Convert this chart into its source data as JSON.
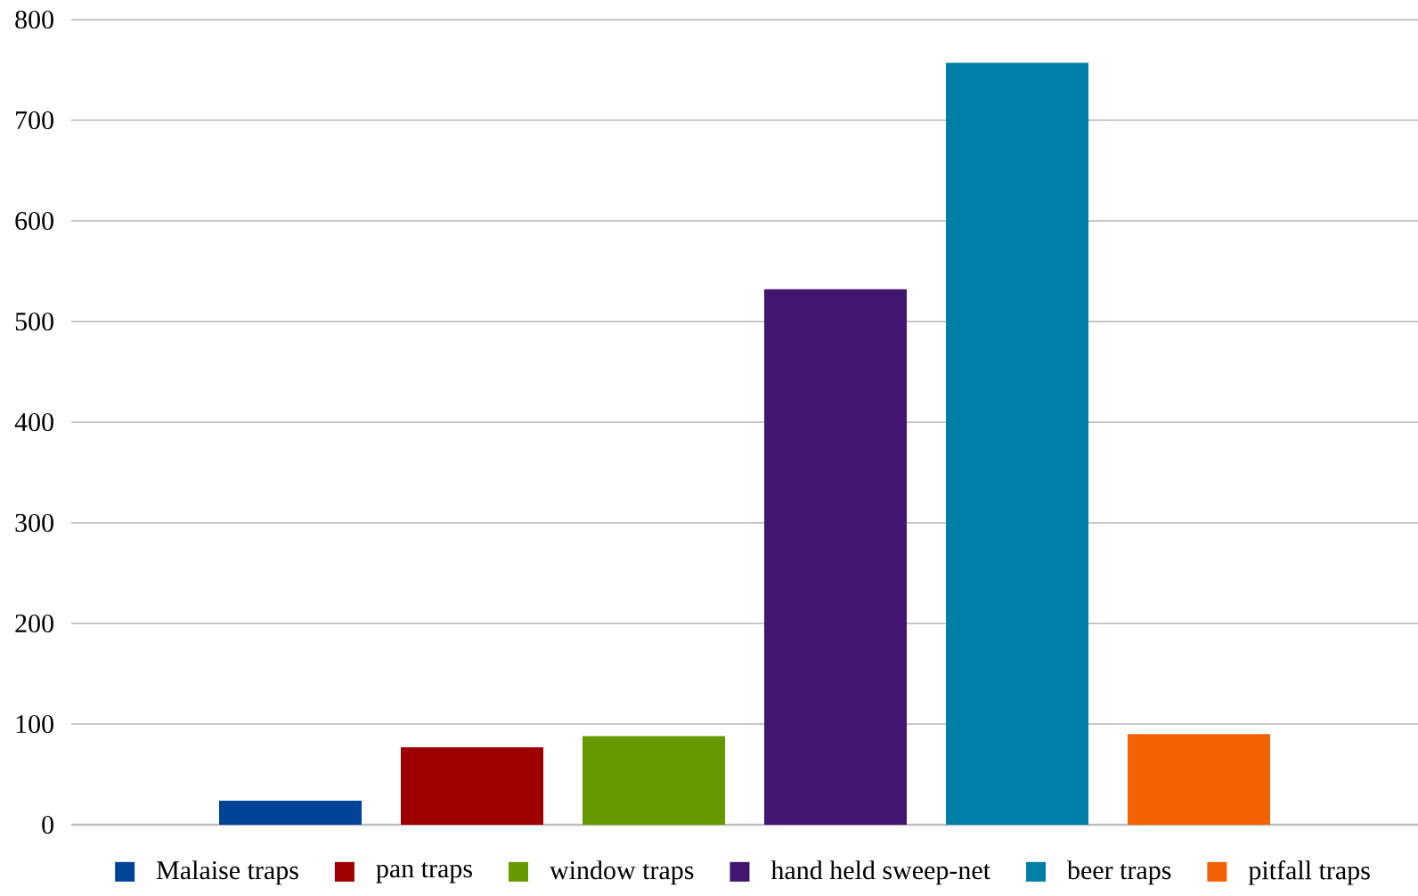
{
  "chart_data": {
    "type": "bar",
    "categories": [
      null
    ],
    "series": [
      {
        "name": "Malaise traps",
        "color": "#004499",
        "values": [
          24
        ]
      },
      {
        "name": "pan traps",
        "color": "#9e0000",
        "values": [
          77
        ]
      },
      {
        "name": "window traps",
        "color": "#669900",
        "values": [
          88
        ]
      },
      {
        "name": "hand held sweep-net",
        "color": "#421570",
        "values": [
          532
        ]
      },
      {
        "name": "beer traps",
        "color": "#0080a8",
        "values": [
          757
        ]
      },
      {
        "name": "pitfall traps",
        "color": "#f26200",
        "values": [
          90
        ]
      }
    ],
    "ylim": [
      0,
      800
    ],
    "yticks": [
      0,
      100,
      200,
      300,
      400,
      500,
      600,
      700,
      800
    ],
    "grid": "y",
    "legend": "bottom"
  }
}
